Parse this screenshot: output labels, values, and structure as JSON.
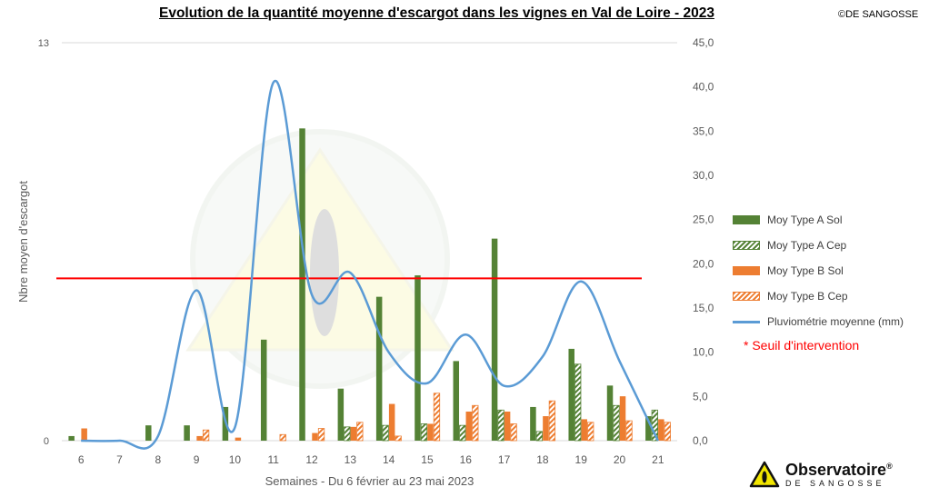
{
  "title": "Evolution de la quantité moyenne d'escargot dans les vignes en Val de Loire - 2023",
  "copyright": "©DE SANGOSSE",
  "seuil_label": "* Seuil d'intervention",
  "logo": {
    "main": "Observatoire",
    "reg": "®",
    "sub": "DE SANGOSSE"
  },
  "colors": {
    "type_a": "#548235",
    "type_b": "#ed7d31",
    "pluvio": "#5b9bd5",
    "seuil": "#ff0000"
  },
  "chart_data": {
    "type": "bar",
    "xlabel": "Semaines - Du 6 février au 23 mai 2023",
    "ylabel": "Nbre moyen d'escargot",
    "y_left": {
      "range": [
        0,
        13
      ],
      "ticks": [
        "0",
        "13"
      ]
    },
    "y_right": {
      "range": [
        0,
        45
      ],
      "ticks": [
        "0,0",
        "5,0",
        "10,0",
        "15,0",
        "20,0",
        "25,0",
        "30,0",
        "35,0",
        "40,0",
        "45,0"
      ]
    },
    "categories": [
      "6",
      "7",
      "8",
      "9",
      "10",
      "11",
      "12",
      "13",
      "14",
      "15",
      "16",
      "17",
      "18",
      "19",
      "20",
      "21"
    ],
    "series": [
      {
        "name": "Moy Type A Sol",
        "kind": "bar",
        "pattern": "solid",
        "color": "#548235",
        "values": [
          0.15,
          0,
          0.5,
          0.5,
          1.1,
          3.3,
          10.2,
          1.7,
          4.7,
          5.4,
          2.6,
          6.6,
          1.1,
          3.0,
          1.8,
          0.8
        ]
      },
      {
        "name": "Moy Type A Cep",
        "kind": "bar",
        "pattern": "hatch",
        "color": "#548235",
        "values": [
          0,
          0,
          0,
          0,
          0,
          0,
          0,
          0.45,
          0.5,
          0.55,
          0.5,
          1.0,
          0.3,
          2.5,
          1.15,
          1.0
        ]
      },
      {
        "name": "Moy Type B Sol",
        "kind": "bar",
        "pattern": "solid",
        "color": "#ed7d31",
        "values": [
          0.4,
          0,
          0,
          0.15,
          0.1,
          0,
          0.25,
          0.45,
          1.2,
          0.55,
          0.95,
          0.95,
          0.8,
          0.7,
          1.45,
          0.7
        ]
      },
      {
        "name": "Moy Type B Cep",
        "kind": "bar",
        "pattern": "hatch",
        "color": "#ed7d31",
        "values": [
          0,
          0,
          0,
          0.35,
          0,
          0.2,
          0.4,
          0.6,
          0.15,
          1.55,
          1.15,
          0.55,
          1.3,
          0.6,
          0.65,
          0.6
        ]
      },
      {
        "name": "Pluviométrie moyenne (mm)",
        "kind": "line",
        "axis": "right",
        "color": "#5b9bd5",
        "values": [
          0,
          0,
          0.5,
          17.0,
          1.5,
          40.5,
          16.5,
          19.0,
          10.0,
          6.5,
          12.0,
          6.2,
          9.5,
          18.0,
          9.0,
          0
        ]
      }
    ],
    "threshold": {
      "axis": "left",
      "value": 5.3
    }
  }
}
